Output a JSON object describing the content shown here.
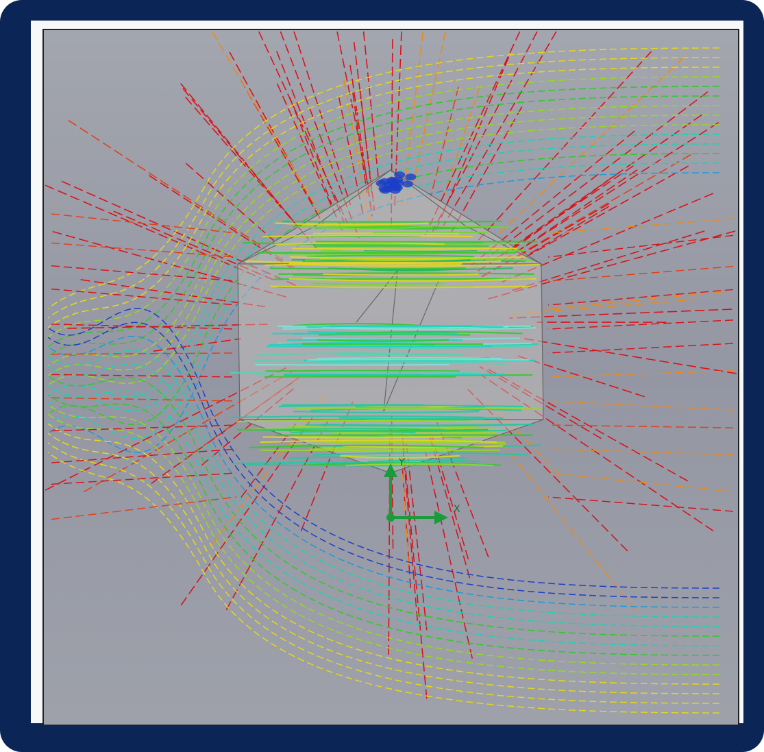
{
  "triad": {
    "x_label": "X",
    "y_label": "Y"
  }
}
